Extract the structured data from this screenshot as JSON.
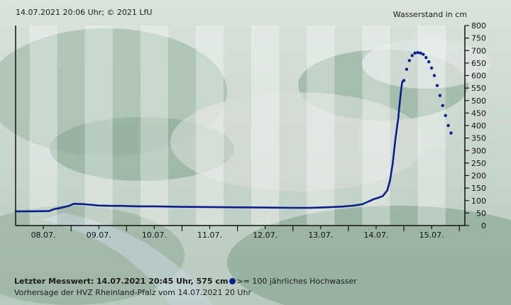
{
  "header": {
    "timestamp_credit": "14.07.2021 20:06 Uhr; © 2021 LfU"
  },
  "footer": {
    "last_value_label": "Letzter Messwert:",
    "last_value_text": "14.07.2021 20:45 Uhr, 575 cm",
    "legend_text": ">= 100 jährliches Hochwasser",
    "forecast_note": "Vorhersage der HVZ Rheinland-Pfalz vom 14.07.2021 20 Uhr"
  },
  "colors": {
    "series": "#0a1e8c",
    "axis": "#111111",
    "band_light": "#ffffff",
    "legend_dot": "#0a1e8c"
  },
  "chart_data": {
    "type": "line",
    "ylabel": "Wasserstand in cm",
    "ylim": [
      0,
      800
    ],
    "yticks": [
      0,
      50,
      100,
      150,
      200,
      250,
      300,
      350,
      400,
      450,
      500,
      550,
      600,
      650,
      700,
      750,
      800
    ],
    "xlim": [
      7.5,
      15.6
    ],
    "x_tick_labels": [
      {
        "x": 8,
        "label": "08.07."
      },
      {
        "x": 9,
        "label": "09.07."
      },
      {
        "x": 10,
        "label": "10.07."
      },
      {
        "x": 11,
        "label": "11.07."
      },
      {
        "x": 12,
        "label": "12.07."
      },
      {
        "x": 13,
        "label": "13.07."
      },
      {
        "x": 14,
        "label": "14.07."
      },
      {
        "x": 15,
        "label": "15.07."
      }
    ],
    "series": [
      {
        "style": "solid",
        "points": [
          [
            7.5,
            57
          ],
          [
            7.8,
            57
          ],
          [
            8.1,
            58
          ],
          [
            8.2,
            66
          ],
          [
            8.3,
            70
          ],
          [
            8.45,
            78
          ],
          [
            8.55,
            87
          ],
          [
            8.7,
            86
          ],
          [
            8.85,
            83
          ],
          [
            9.0,
            80
          ],
          [
            9.2,
            79
          ],
          [
            9.4,
            79
          ],
          [
            9.7,
            77
          ],
          [
            10.0,
            77
          ],
          [
            10.5,
            75
          ],
          [
            11.0,
            74
          ],
          [
            11.5,
            73
          ],
          [
            12.0,
            72
          ],
          [
            12.5,
            71
          ],
          [
            12.8,
            71
          ],
          [
            13.0,
            72
          ],
          [
            13.2,
            74
          ],
          [
            13.4,
            76
          ],
          [
            13.6,
            80
          ],
          [
            13.75,
            85
          ],
          [
            13.85,
            95
          ],
          [
            13.95,
            105
          ],
          [
            14.05,
            112
          ],
          [
            14.12,
            118
          ],
          [
            14.2,
            140
          ],
          [
            14.25,
            180
          ],
          [
            14.3,
            250
          ],
          [
            14.35,
            350
          ],
          [
            14.4,
            430
          ],
          [
            14.42,
            480
          ],
          [
            14.45,
            540
          ],
          [
            14.47,
            575
          ]
        ]
      },
      {
        "style": "dotted",
        "points": [
          [
            14.5,
            580
          ],
          [
            14.55,
            625
          ],
          [
            14.6,
            660
          ],
          [
            14.65,
            680
          ],
          [
            14.7,
            690
          ],
          [
            14.75,
            692
          ],
          [
            14.8,
            690
          ],
          [
            14.85,
            685
          ],
          [
            14.9,
            672
          ],
          [
            14.95,
            655
          ],
          [
            15.0,
            630
          ],
          [
            15.05,
            600
          ],
          [
            15.1,
            560
          ],
          [
            15.15,
            520
          ],
          [
            15.2,
            480
          ],
          [
            15.25,
            440
          ],
          [
            15.3,
            400
          ],
          [
            15.35,
            370
          ]
        ]
      }
    ]
  }
}
